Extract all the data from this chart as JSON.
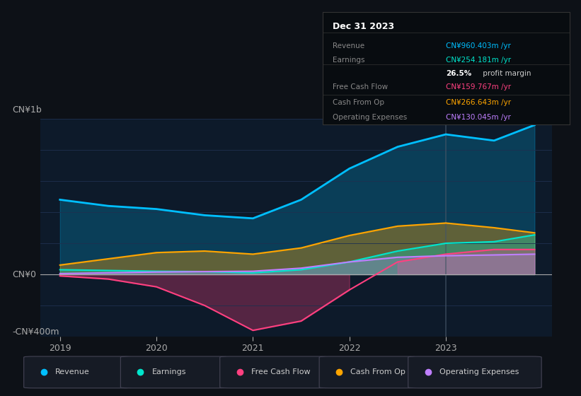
{
  "background_color": "#0d1117",
  "plot_bg_color": "#0d1a2a",
  "ylabel_top": "CN¥1b",
  "ylabel_bottom": "-CN¥400m",
  "y0_label": "CN¥0",
  "years": [
    2019,
    2019.5,
    2020,
    2020.5,
    2021,
    2021.5,
    2022,
    2022.5,
    2023,
    2023.5,
    2023.92
  ],
  "revenue": [
    480,
    440,
    420,
    380,
    360,
    480,
    680,
    820,
    900,
    860,
    960
  ],
  "earnings": [
    30,
    25,
    20,
    18,
    10,
    30,
    80,
    150,
    200,
    210,
    254
  ],
  "free_cash_flow": [
    -10,
    -30,
    -80,
    -200,
    -360,
    -300,
    -100,
    80,
    130,
    160,
    160
  ],
  "cash_from_op": [
    60,
    100,
    140,
    150,
    130,
    170,
    250,
    310,
    330,
    300,
    267
  ],
  "operating_expenses": [
    5,
    10,
    15,
    18,
    20,
    40,
    80,
    110,
    120,
    125,
    130
  ],
  "revenue_color": "#00bfff",
  "earnings_color": "#00e5cc",
  "fcf_color": "#ff4080",
  "cashop_color": "#ffa500",
  "opex_color": "#bf7fff",
  "legend_items": [
    "Revenue",
    "Earnings",
    "Free Cash Flow",
    "Cash From Op",
    "Operating Expenses"
  ],
  "info_box_title": "Dec 31 2023",
  "info_rows": [
    {
      "label": "Revenue",
      "value": "CN¥960.403m /yr",
      "value_color": "#00bfff",
      "bold_prefix": ""
    },
    {
      "label": "Earnings",
      "value": "CN¥254.181m /yr",
      "value_color": "#00e5cc",
      "bold_prefix": ""
    },
    {
      "label": "",
      "value": " profit margin",
      "value_color": "#cccccc",
      "bold_prefix": "26.5%"
    },
    {
      "label": "Free Cash Flow",
      "value": "CN¥159.767m /yr",
      "value_color": "#ff4080",
      "bold_prefix": ""
    },
    {
      "label": "Cash From Op",
      "value": "CN¥266.643m /yr",
      "value_color": "#ffa500",
      "bold_prefix": ""
    },
    {
      "label": "Operating Expenses",
      "value": "CN¥130.045m /yr",
      "value_color": "#bf7fff",
      "bold_prefix": ""
    }
  ],
  "ylim": [
    -400,
    1000
  ],
  "xlim": [
    2018.8,
    2024.1
  ]
}
